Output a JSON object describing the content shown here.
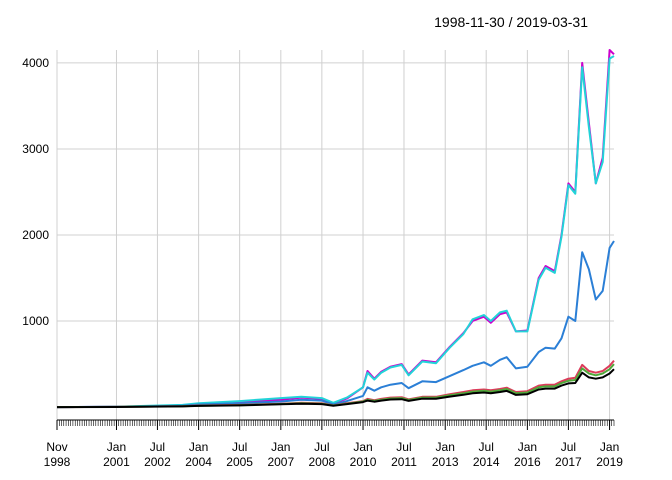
{
  "chart_data": {
    "type": "line",
    "title": "1998-11-30 / 2019-03-31",
    "xlabel": "",
    "ylabel": "",
    "x_range": [
      "1998-11-30",
      "2019-03-31"
    ],
    "ylim": [
      -150,
      4150
    ],
    "y_ticks": [
      1000,
      2000,
      3000,
      4000
    ],
    "x_tick_labels": [
      {
        "date": "1998-11-30",
        "label": "Nov\n1998"
      },
      {
        "date": "2001-01-31",
        "label": "Jan\n2001"
      },
      {
        "date": "2002-07-31",
        "label": "Jul\n2002"
      },
      {
        "date": "2004-01-31",
        "label": "Jan\n2004"
      },
      {
        "date": "2005-07-31",
        "label": "Jul\n2005"
      },
      {
        "date": "2007-01-31",
        "label": "Jan\n2007"
      },
      {
        "date": "2008-07-31",
        "label": "Jul\n2008"
      },
      {
        "date": "2010-01-31",
        "label": "Jan\n2010"
      },
      {
        "date": "2011-07-31",
        "label": "Jul\n2011"
      },
      {
        "date": "2013-01-31",
        "label": "Jan\n2013"
      },
      {
        "date": "2014-07-31",
        "label": "Jul\n2014"
      },
      {
        "date": "2016-01-31",
        "label": "Jan\n2016"
      },
      {
        "date": "2017-07-31",
        "label": "Jul\n2017"
      },
      {
        "date": "2019-01-31",
        "label": "Jan\n2019"
      }
    ],
    "grid": true,
    "legend": "none",
    "series": [
      {
        "color": "#cc00cc",
        "points": [
          [
            "1998-11-30",
            0
          ],
          [
            "2001-01-31",
            3
          ],
          [
            "2003-06-30",
            20
          ],
          [
            "2004-01-31",
            40
          ],
          [
            "2005-07-31",
            55
          ],
          [
            "2007-01-31",
            85
          ],
          [
            "2007-10-31",
            110
          ],
          [
            "2008-07-31",
            95
          ],
          [
            "2008-12-31",
            40
          ],
          [
            "2009-06-30",
            100
          ],
          [
            "2010-01-31",
            230
          ],
          [
            "2010-03-31",
            420
          ],
          [
            "2010-06-30",
            330
          ],
          [
            "2010-09-30",
            410
          ],
          [
            "2011-01-31",
            470
          ],
          [
            "2011-06-30",
            500
          ],
          [
            "2011-09-30",
            380
          ],
          [
            "2012-03-31",
            540
          ],
          [
            "2012-09-30",
            520
          ],
          [
            "2013-03-31",
            700
          ],
          [
            "2013-09-30",
            860
          ],
          [
            "2014-01-31",
            1000
          ],
          [
            "2014-06-30",
            1050
          ],
          [
            "2014-09-30",
            980
          ],
          [
            "2015-01-31",
            1080
          ],
          [
            "2015-04-30",
            1100
          ],
          [
            "2015-08-31",
            880
          ],
          [
            "2016-01-31",
            890
          ],
          [
            "2016-06-30",
            1500
          ],
          [
            "2016-09-30",
            1640
          ],
          [
            "2017-01-31",
            1580
          ],
          [
            "2017-04-30",
            2000
          ],
          [
            "2017-07-31",
            2600
          ],
          [
            "2017-10-31",
            2500
          ],
          [
            "2018-01-31",
            4000
          ],
          [
            "2018-04-30",
            3300
          ],
          [
            "2018-07-31",
            2600
          ],
          [
            "2018-10-31",
            2900
          ],
          [
            "2019-01-31",
            4150
          ],
          [
            "2019-03-31",
            4100
          ]
        ]
      },
      {
        "color": "#22d3d8",
        "points": [
          [
            "1998-11-30",
            0
          ],
          [
            "2001-01-31",
            5
          ],
          [
            "2003-06-30",
            25
          ],
          [
            "2004-01-31",
            45
          ],
          [
            "2005-07-31",
            70
          ],
          [
            "2007-01-31",
            105
          ],
          [
            "2007-10-31",
            120
          ],
          [
            "2008-07-31",
            105
          ],
          [
            "2008-12-31",
            50
          ],
          [
            "2009-06-30",
            110
          ],
          [
            "2010-01-31",
            230
          ],
          [
            "2010-03-31",
            400
          ],
          [
            "2010-06-30",
            320
          ],
          [
            "2010-09-30",
            400
          ],
          [
            "2011-01-31",
            460
          ],
          [
            "2011-06-30",
            490
          ],
          [
            "2011-09-30",
            370
          ],
          [
            "2012-03-31",
            530
          ],
          [
            "2012-09-30",
            510
          ],
          [
            "2013-03-31",
            690
          ],
          [
            "2013-09-30",
            850
          ],
          [
            "2014-01-31",
            1020
          ],
          [
            "2014-06-30",
            1070
          ],
          [
            "2014-09-30",
            1000
          ],
          [
            "2015-01-31",
            1100
          ],
          [
            "2015-04-30",
            1120
          ],
          [
            "2015-08-31",
            880
          ],
          [
            "2016-01-31",
            880
          ],
          [
            "2016-06-30",
            1480
          ],
          [
            "2016-09-30",
            1620
          ],
          [
            "2017-01-31",
            1560
          ],
          [
            "2017-04-30",
            1980
          ],
          [
            "2017-07-31",
            2580
          ],
          [
            "2017-10-31",
            2480
          ],
          [
            "2018-01-31",
            3950
          ],
          [
            "2018-04-30",
            3250
          ],
          [
            "2018-07-31",
            2600
          ],
          [
            "2018-10-31",
            2850
          ],
          [
            "2019-01-31",
            4050
          ],
          [
            "2019-03-31",
            4080
          ]
        ]
      },
      {
        "color": "#2b7fd6",
        "points": [
          [
            "1998-11-30",
            0
          ],
          [
            "2001-01-31",
            3
          ],
          [
            "2003-06-30",
            15
          ],
          [
            "2004-01-31",
            30
          ],
          [
            "2005-07-31",
            45
          ],
          [
            "2007-01-31",
            65
          ],
          [
            "2007-10-31",
            85
          ],
          [
            "2008-07-31",
            75
          ],
          [
            "2008-12-31",
            30
          ],
          [
            "2009-06-30",
            70
          ],
          [
            "2010-01-31",
            130
          ],
          [
            "2010-03-31",
            230
          ],
          [
            "2010-06-30",
            190
          ],
          [
            "2010-09-30",
            230
          ],
          [
            "2011-01-31",
            260
          ],
          [
            "2011-06-30",
            280
          ],
          [
            "2011-09-30",
            220
          ],
          [
            "2012-03-31",
            300
          ],
          [
            "2012-09-30",
            290
          ],
          [
            "2013-03-31",
            360
          ],
          [
            "2013-09-30",
            430
          ],
          [
            "2014-01-31",
            480
          ],
          [
            "2014-06-30",
            520
          ],
          [
            "2014-09-30",
            480
          ],
          [
            "2015-01-31",
            550
          ],
          [
            "2015-04-30",
            580
          ],
          [
            "2015-08-31",
            450
          ],
          [
            "2016-01-31",
            470
          ],
          [
            "2016-06-30",
            640
          ],
          [
            "2016-09-30",
            690
          ],
          [
            "2017-01-31",
            680
          ],
          [
            "2017-04-30",
            800
          ],
          [
            "2017-07-31",
            1050
          ],
          [
            "2017-10-31",
            1000
          ],
          [
            "2018-01-31",
            1800
          ],
          [
            "2018-04-30",
            1600
          ],
          [
            "2018-07-31",
            1250
          ],
          [
            "2018-10-31",
            1350
          ],
          [
            "2019-01-31",
            1850
          ],
          [
            "2019-03-31",
            1930
          ]
        ]
      },
      {
        "color": "#dc3b5a",
        "points": [
          [
            "1998-11-30",
            0
          ],
          [
            "2001-01-31",
            2
          ],
          [
            "2003-06-30",
            10
          ],
          [
            "2004-01-31",
            18
          ],
          [
            "2005-07-31",
            25
          ],
          [
            "2007-01-31",
            40
          ],
          [
            "2007-10-31",
            50
          ],
          [
            "2008-07-31",
            45
          ],
          [
            "2008-12-31",
            20
          ],
          [
            "2009-06-30",
            45
          ],
          [
            "2010-01-31",
            70
          ],
          [
            "2010-03-31",
            95
          ],
          [
            "2010-06-30",
            80
          ],
          [
            "2010-09-30",
            95
          ],
          [
            "2011-01-31",
            110
          ],
          [
            "2011-06-30",
            115
          ],
          [
            "2011-09-30",
            90
          ],
          [
            "2012-03-31",
            120
          ],
          [
            "2012-09-30",
            120
          ],
          [
            "2013-03-31",
            150
          ],
          [
            "2013-09-30",
            175
          ],
          [
            "2014-01-31",
            195
          ],
          [
            "2014-06-30",
            205
          ],
          [
            "2014-09-30",
            195
          ],
          [
            "2015-01-31",
            210
          ],
          [
            "2015-04-30",
            225
          ],
          [
            "2015-08-31",
            175
          ],
          [
            "2016-01-31",
            185
          ],
          [
            "2016-06-30",
            250
          ],
          [
            "2016-09-30",
            260
          ],
          [
            "2017-01-31",
            260
          ],
          [
            "2017-04-30",
            300
          ],
          [
            "2017-07-31",
            330
          ],
          [
            "2017-10-31",
            340
          ],
          [
            "2018-01-31",
            490
          ],
          [
            "2018-04-30",
            420
          ],
          [
            "2018-07-31",
            400
          ],
          [
            "2018-10-31",
            420
          ],
          [
            "2019-01-31",
            480
          ],
          [
            "2019-03-31",
            540
          ]
        ]
      },
      {
        "color": "#4fa83a",
        "points": [
          [
            "1998-11-30",
            0
          ],
          [
            "2001-01-31",
            2
          ],
          [
            "2003-06-30",
            9
          ],
          [
            "2004-01-31",
            16
          ],
          [
            "2005-07-31",
            22
          ],
          [
            "2007-01-31",
            36
          ],
          [
            "2007-10-31",
            45
          ],
          [
            "2008-07-31",
            40
          ],
          [
            "2008-12-31",
            18
          ],
          [
            "2009-06-30",
            40
          ],
          [
            "2010-01-31",
            65
          ],
          [
            "2010-03-31",
            85
          ],
          [
            "2010-06-30",
            72
          ],
          [
            "2010-09-30",
            85
          ],
          [
            "2011-01-31",
            100
          ],
          [
            "2011-06-30",
            105
          ],
          [
            "2011-09-30",
            82
          ],
          [
            "2012-03-31",
            110
          ],
          [
            "2012-09-30",
            110
          ],
          [
            "2013-03-31",
            138
          ],
          [
            "2013-09-30",
            160
          ],
          [
            "2014-01-31",
            180
          ],
          [
            "2014-06-30",
            190
          ],
          [
            "2014-09-30",
            180
          ],
          [
            "2015-01-31",
            195
          ],
          [
            "2015-04-30",
            210
          ],
          [
            "2015-08-31",
            160
          ],
          [
            "2016-01-31",
            170
          ],
          [
            "2016-06-30",
            230
          ],
          [
            "2016-09-30",
            240
          ],
          [
            "2017-01-31",
            240
          ],
          [
            "2017-04-30",
            280
          ],
          [
            "2017-07-31",
            305
          ],
          [
            "2017-10-31",
            315
          ],
          [
            "2018-01-31",
            450
          ],
          [
            "2018-04-30",
            390
          ],
          [
            "2018-07-31",
            370
          ],
          [
            "2018-10-31",
            390
          ],
          [
            "2019-01-31",
            440
          ],
          [
            "2019-03-31",
            500
          ]
        ]
      },
      {
        "color": "#000000",
        "points": [
          [
            "1998-11-30",
            0
          ],
          [
            "2001-01-31",
            1
          ],
          [
            "2003-06-30",
            8
          ],
          [
            "2004-01-31",
            14
          ],
          [
            "2005-07-31",
            20
          ],
          [
            "2007-01-31",
            32
          ],
          [
            "2007-10-31",
            40
          ],
          [
            "2008-07-31",
            35
          ],
          [
            "2008-12-31",
            15
          ],
          [
            "2009-06-30",
            35
          ],
          [
            "2010-01-31",
            58
          ],
          [
            "2010-03-31",
            75
          ],
          [
            "2010-06-30",
            63
          ],
          [
            "2010-09-30",
            75
          ],
          [
            "2011-01-31",
            88
          ],
          [
            "2011-06-30",
            92
          ],
          [
            "2011-09-30",
            72
          ],
          [
            "2012-03-31",
            97
          ],
          [
            "2012-09-30",
            97
          ],
          [
            "2013-03-31",
            122
          ],
          [
            "2013-09-30",
            143
          ],
          [
            "2014-01-31",
            160
          ],
          [
            "2014-06-30",
            170
          ],
          [
            "2014-09-30",
            160
          ],
          [
            "2015-01-31",
            175
          ],
          [
            "2015-04-30",
            188
          ],
          [
            "2015-08-31",
            142
          ],
          [
            "2016-01-31",
            150
          ],
          [
            "2016-06-30",
            205
          ],
          [
            "2016-09-30",
            215
          ],
          [
            "2017-01-31",
            215
          ],
          [
            "2017-04-30",
            250
          ],
          [
            "2017-07-31",
            275
          ],
          [
            "2017-10-31",
            280
          ],
          [
            "2018-01-31",
            400
          ],
          [
            "2018-04-30",
            345
          ],
          [
            "2018-07-31",
            330
          ],
          [
            "2018-10-31",
            345
          ],
          [
            "2019-01-31",
            390
          ],
          [
            "2019-03-31",
            440
          ]
        ]
      }
    ]
  }
}
